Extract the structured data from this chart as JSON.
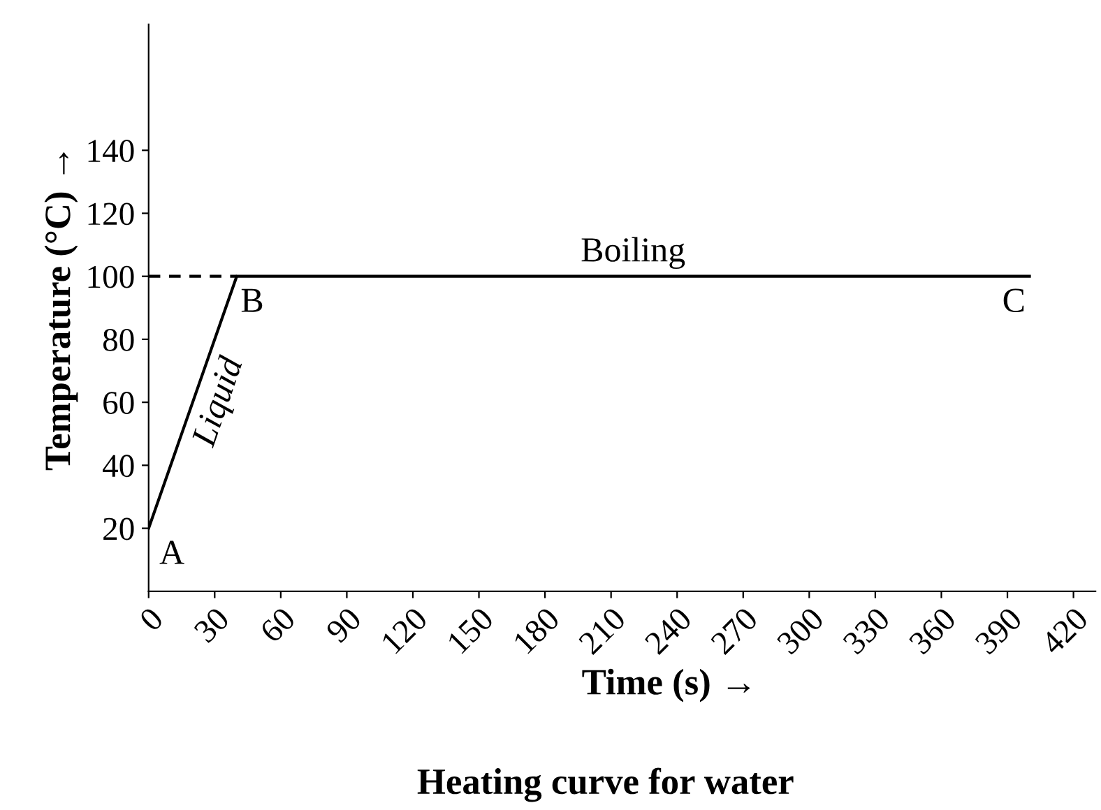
{
  "chart_data": {
    "type": "line",
    "title": "Heating curve for water",
    "xlabel": "Time (s) →",
    "ylabel": "Temperature (°C) →",
    "x": [
      0,
      40,
      400
    ],
    "series": [
      {
        "color": "#000000",
        "values": [
          20,
          100,
          100
        ]
      },
      {
        "color": "#000000",
        "x": [
          0,
          40
        ],
        "values": [
          100,
          100
        ],
        "line_style": "dashed"
      }
    ],
    "xlim": [
      0,
      430
    ],
    "ylim": [
      0,
      180
    ],
    "xticks": [
      0,
      30,
      60,
      90,
      120,
      150,
      180,
      210,
      240,
      270,
      300,
      330,
      360,
      390,
      420
    ],
    "yticks": [
      20,
      40,
      60,
      80,
      100,
      120,
      140
    ],
    "annotations": [
      {
        "text": "A",
        "x": 0,
        "y": 20
      },
      {
        "text": "B",
        "x": 40,
        "y": 100
      },
      {
        "text": "C",
        "x": 400,
        "y": 100
      },
      {
        "text": "Liquid",
        "x": 20,
        "y": 60
      },
      {
        "text": "Boiling",
        "x": 220,
        "y": 100
      }
    ],
    "grid": false,
    "legend": false,
    "marker": "none",
    "line_style": "solid"
  }
}
